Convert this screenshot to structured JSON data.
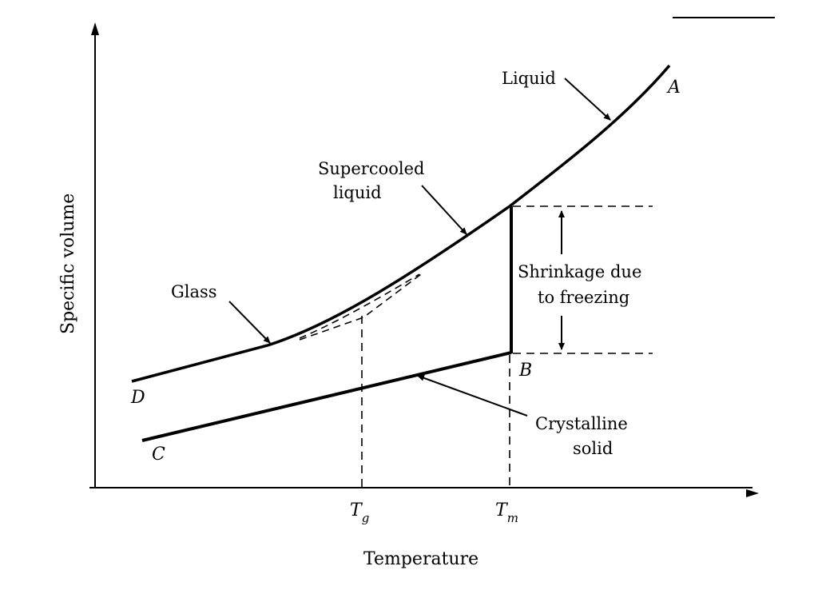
{
  "diagram": {
    "axes": {
      "x_title": "Temperature",
      "y_title": "Specific volume"
    },
    "ticks": {
      "tg": "T",
      "tg_sub": "g",
      "tm": "T",
      "tm_sub": "m"
    },
    "points": {
      "a": "A",
      "b": "B",
      "c": "C",
      "d": "D"
    },
    "labels": {
      "liquid": "Liquid",
      "supercooled_line1": "Supercooled",
      "supercooled_line2": "liquid",
      "glass": "Glass",
      "shrinkage_line1": "Shrinkage due",
      "shrinkage_line2": "to freezing",
      "crystalline_line1": "Crystalline",
      "crystalline_line2": "solid"
    }
  }
}
